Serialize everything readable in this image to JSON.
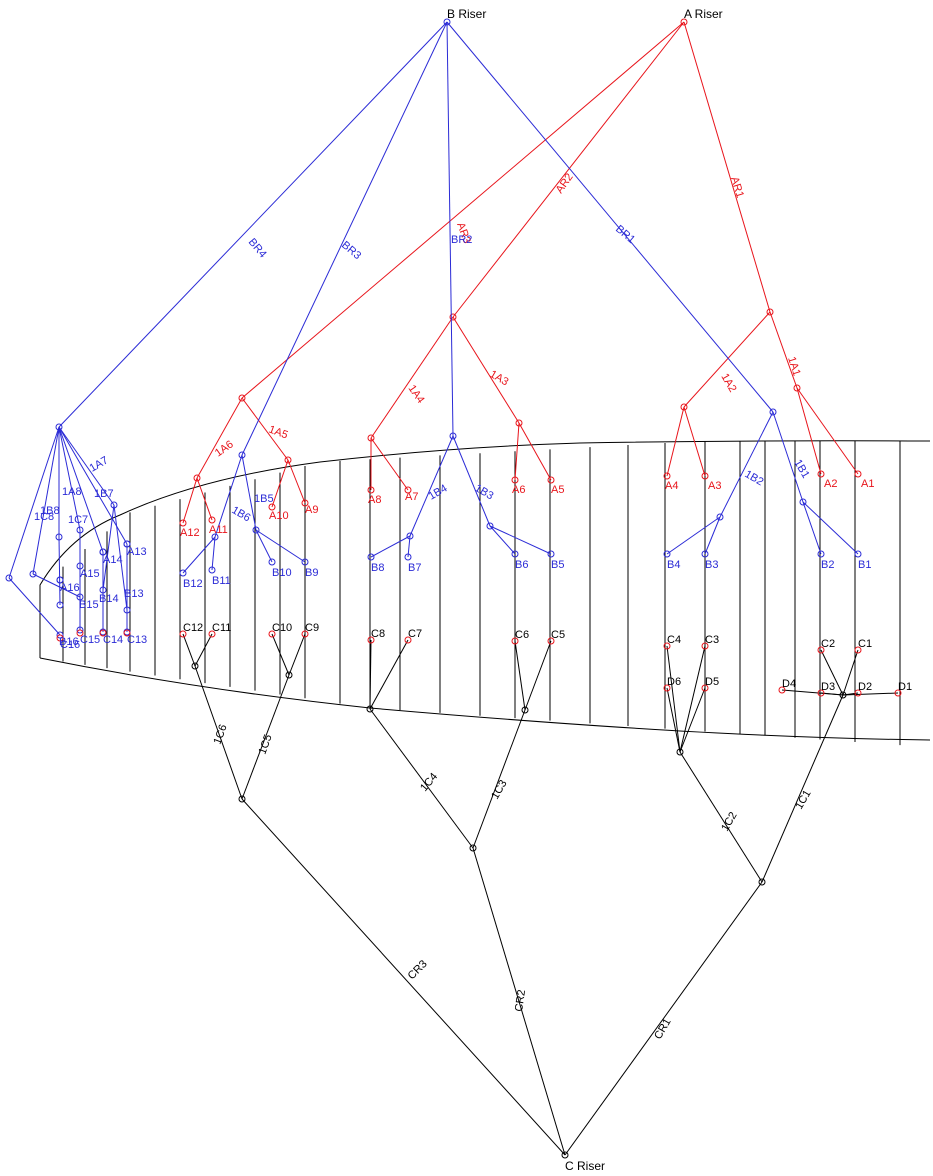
{
  "colors": {
    "a": "#e8141b",
    "b": "#2b2bd6",
    "c": "#000000",
    "canopy": "#000000"
  },
  "risers": {
    "a": "A Riser",
    "b": "B Riser",
    "c": "C Riser"
  },
  "line_labels": {
    "a": [
      "AR1",
      "AR2",
      "AR3",
      "1A1",
      "1A2",
      "1A3",
      "1A4",
      "1A5",
      "1A6",
      "1A7",
      "1A8"
    ],
    "b": [
      "BR1",
      "BR2",
      "BR3",
      "BR4",
      "1B1",
      "1B2",
      "1B3",
      "1B4",
      "1B5",
      "1B6",
      "1B7",
      "1B8"
    ],
    "c": [
      "CR1",
      "CR2",
      "CR3",
      "1C1",
      "1C2",
      "1C3",
      "1C4",
      "1C5",
      "1C6",
      "1C7",
      "1C8"
    ]
  },
  "attachment_labels": {
    "a": [
      "A1",
      "A2",
      "A3",
      "A4",
      "A5",
      "A6",
      "A7",
      "A8",
      "A9",
      "A10",
      "A11",
      "A12",
      "A13",
      "A14",
      "A15",
      "A16"
    ],
    "b": [
      "B1",
      "B2",
      "B3",
      "B4",
      "B5",
      "B6",
      "B7",
      "B8",
      "B9",
      "B10",
      "B11",
      "B12",
      "B13",
      "B14",
      "B15",
      "B16"
    ],
    "c": [
      "C1",
      "C2",
      "C3",
      "C4",
      "C5",
      "C6",
      "C7",
      "C8",
      "C9",
      "C10",
      "C11",
      "C12",
      "C13",
      "C14",
      "C15",
      "C16"
    ],
    "d": [
      "D1",
      "D2",
      "D3",
      "D4",
      "D5",
      "D6"
    ]
  }
}
